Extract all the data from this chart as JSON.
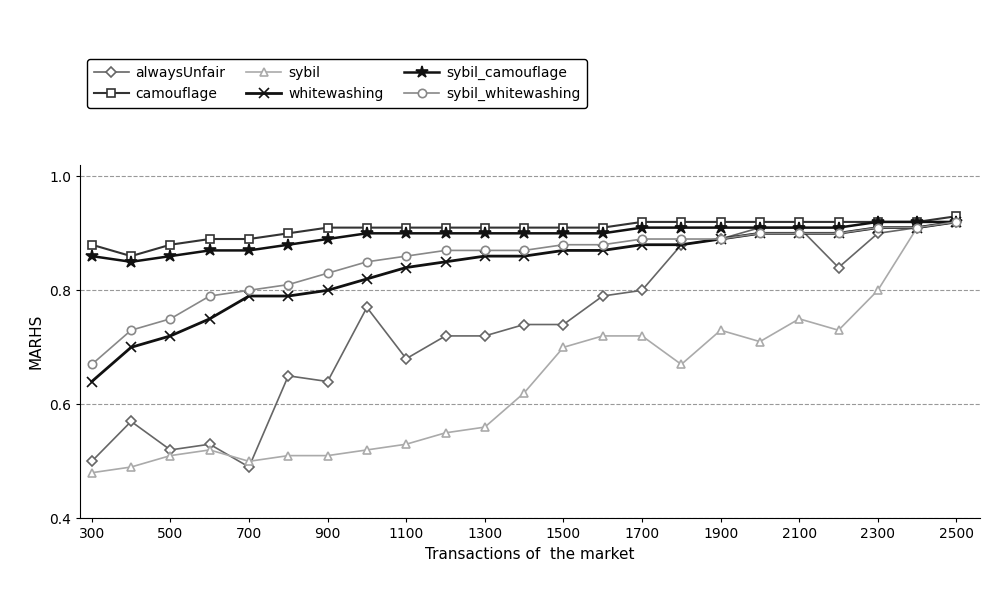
{
  "x": [
    300,
    400,
    500,
    600,
    700,
    800,
    900,
    1000,
    1100,
    1200,
    1300,
    1400,
    1500,
    1600,
    1700,
    1800,
    1900,
    2000,
    2100,
    2200,
    2300,
    2400,
    2500
  ],
  "alwaysUnfair": [
    0.5,
    0.57,
    0.52,
    0.53,
    0.49,
    0.65,
    0.64,
    0.77,
    0.68,
    0.72,
    0.72,
    0.74,
    0.74,
    0.79,
    0.8,
    0.88,
    0.89,
    0.91,
    0.91,
    0.84,
    0.9,
    0.91,
    0.92
  ],
  "camouflage": [
    0.88,
    0.86,
    0.88,
    0.89,
    0.89,
    0.9,
    0.91,
    0.91,
    0.91,
    0.91,
    0.91,
    0.91,
    0.91,
    0.91,
    0.92,
    0.92,
    0.92,
    0.92,
    0.92,
    0.92,
    0.92,
    0.92,
    0.93
  ],
  "sybil": [
    0.48,
    0.49,
    0.51,
    0.52,
    0.5,
    0.51,
    0.51,
    0.52,
    0.53,
    0.55,
    0.56,
    0.62,
    0.7,
    0.72,
    0.72,
    0.67,
    0.73,
    0.71,
    0.75,
    0.73,
    0.8,
    0.91,
    0.92
  ],
  "whitewashing": [
    0.64,
    0.7,
    0.72,
    0.75,
    0.79,
    0.79,
    0.8,
    0.82,
    0.84,
    0.85,
    0.86,
    0.86,
    0.87,
    0.87,
    0.88,
    0.88,
    0.89,
    0.9,
    0.9,
    0.9,
    0.91,
    0.91,
    0.92
  ],
  "sybil_camouflage": [
    0.86,
    0.85,
    0.86,
    0.87,
    0.87,
    0.88,
    0.89,
    0.9,
    0.9,
    0.9,
    0.9,
    0.9,
    0.9,
    0.9,
    0.91,
    0.91,
    0.91,
    0.91,
    0.91,
    0.91,
    0.92,
    0.92,
    0.92
  ],
  "sybil_whitewashing": [
    0.67,
    0.73,
    0.75,
    0.79,
    0.8,
    0.81,
    0.83,
    0.85,
    0.86,
    0.87,
    0.87,
    0.87,
    0.88,
    0.88,
    0.89,
    0.89,
    0.89,
    0.9,
    0.9,
    0.9,
    0.91,
    0.91,
    0.92
  ],
  "xlabel": "Transactions of  the market",
  "ylabel": "MARHS",
  "ylim": [
    0.4,
    1.02
  ],
  "xlim": [
    270,
    2560
  ],
  "yticks": [
    0.4,
    0.6,
    0.8,
    1
  ],
  "xticks": [
    300,
    500,
    700,
    900,
    1100,
    1300,
    1500,
    1700,
    1900,
    2100,
    2300,
    2500
  ],
  "series_order": [
    "alwaysUnfair",
    "camouflage",
    "sybil",
    "whitewashing",
    "sybil_camouflage",
    "sybil_whitewashing"
  ],
  "colors": {
    "alwaysUnfair": "#666666",
    "camouflage": "#333333",
    "sybil": "#aaaaaa",
    "whitewashing": "#111111",
    "sybil_camouflage": "#111111",
    "sybil_whitewashing": "#888888"
  },
  "markers": {
    "alwaysUnfair": "D",
    "camouflage": "s",
    "sybil": "^",
    "whitewashing": "x",
    "sybil_camouflage": "*",
    "sybil_whitewashing": "o"
  },
  "marker_sizes": {
    "alwaysUnfair": 5,
    "camouflage": 6,
    "sybil": 6,
    "whitewashing": 7,
    "sybil_camouflage": 9,
    "sybil_whitewashing": 6
  },
  "linewidths": {
    "alwaysUnfair": 1.2,
    "camouflage": 1.5,
    "sybil": 1.2,
    "whitewashing": 2.0,
    "sybil_camouflage": 1.8,
    "sybil_whitewashing": 1.2
  },
  "legend_order": [
    "alwaysUnfair",
    "camouflage",
    "sybil",
    "whitewashing",
    "sybil_camouflage",
    "sybil_whitewashing"
  ]
}
